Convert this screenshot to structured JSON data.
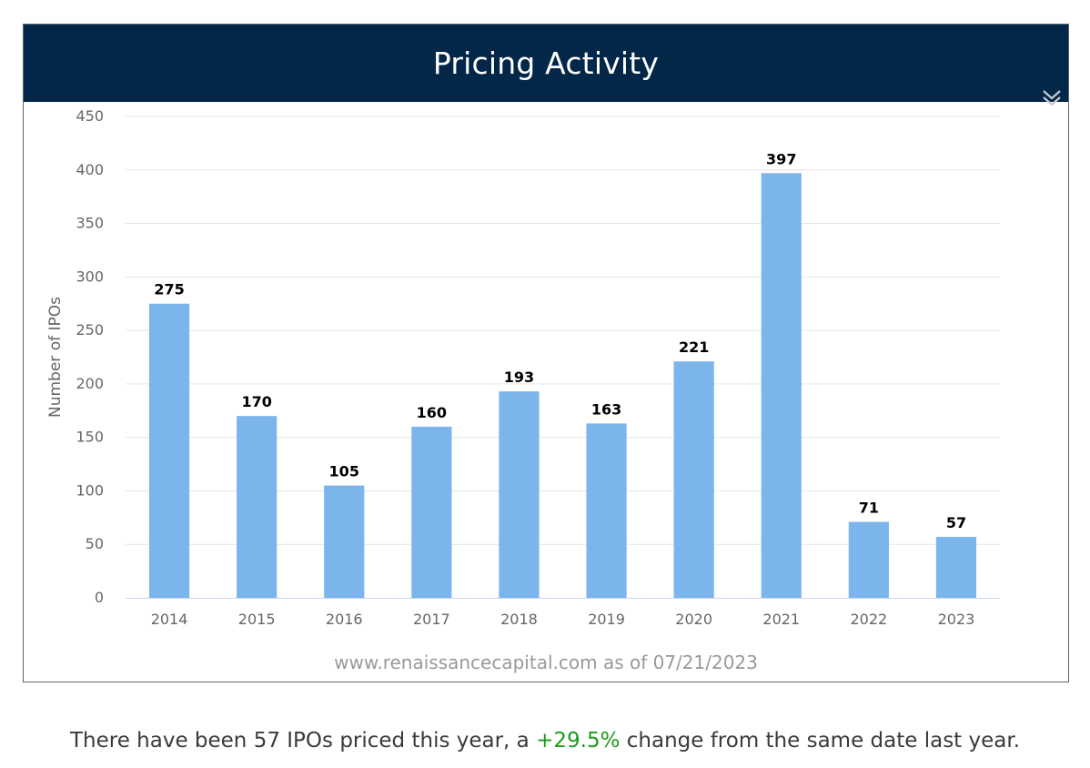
{
  "header": {
    "title": "Pricing Activity"
  },
  "icons": {
    "collapse": "chevron-double-down-icon"
  },
  "colors": {
    "header_bg": "#022749",
    "bar": "#7cb5ec",
    "positive": "#1a9c1a"
  },
  "chart_data": {
    "type": "bar",
    "title": "Pricing Activity",
    "categories": [
      "2014",
      "2015",
      "2016",
      "2017",
      "2018",
      "2019",
      "2020",
      "2021",
      "2022",
      "2023"
    ],
    "values": [
      275,
      170,
      105,
      160,
      193,
      163,
      221,
      397,
      71,
      57
    ],
    "xlabel": "",
    "ylabel": "Number of IPOs",
    "ylim": [
      0,
      450
    ],
    "yticks": [
      "0",
      "50",
      "100",
      "150",
      "200",
      "250",
      "300",
      "350",
      "400",
      "450"
    ],
    "grid": true,
    "legend": "none",
    "credits": "www.renaissancecapital.com as of 07/21/2023"
  },
  "caption": {
    "before": "There have been 57 IPOs priced this year, a ",
    "change": "+29.5%",
    "after": " change from the same date last year."
  }
}
